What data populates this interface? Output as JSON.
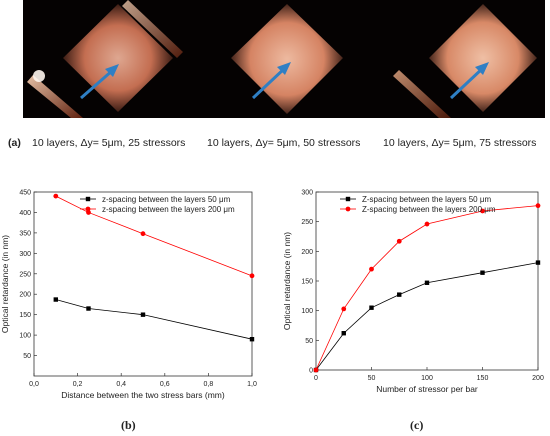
{
  "photos": {
    "panel_letter": "(a)",
    "captions": [
      "10 layers, Δy= 5μm, 25 stressors",
      "10 layers, Δy= 5μm, 50 stressors",
      "10 layers, Δy= 5μm, 75 stressors"
    ]
  },
  "chart_data": [
    {
      "type": "line",
      "panel_label": "(b)",
      "xlabel": "Distance between the two stress bars (mm)",
      "ylabel": "Optical retardance (in nm)",
      "xlim": [
        0.0,
        1.0
      ],
      "ylim": [
        0,
        450
      ],
      "xticks": [
        "0,0",
        "0,2",
        "0,4",
        "0,6",
        "0,8",
        "1,0"
      ],
      "yticks": [
        "50",
        "100",
        "150",
        "200",
        "250",
        "300",
        "350",
        "400",
        "450"
      ],
      "legend_position": "top-right",
      "x": [
        0.1,
        0.25,
        0.5,
        1.0
      ],
      "series": [
        {
          "name": "z-spacing between the layers 50 μm",
          "color": "#000000",
          "marker": "square",
          "values": [
            187,
            165,
            150,
            90
          ]
        },
        {
          "name": "z-spacing between the layers 200 μm",
          "color": "#ff0000",
          "marker": "circle",
          "values": [
            440,
            400,
            348,
            245
          ]
        }
      ]
    },
    {
      "type": "line",
      "panel_label": "(c)",
      "xlabel": "Number of stressor per bar",
      "ylabel": "Optical retardance (in nm)",
      "xlim": [
        0,
        200
      ],
      "ylim": [
        0,
        300
      ],
      "xticks": [
        "0",
        "50",
        "100",
        "150",
        "200"
      ],
      "yticks": [
        "0",
        "50",
        "100",
        "150",
        "200",
        "250",
        "300"
      ],
      "legend_position": "top-left",
      "x": [
        0,
        25,
        50,
        75,
        100,
        150,
        200
      ],
      "series": [
        {
          "name": "Z-spacing between the layers  50 μm",
          "color": "#000000",
          "marker": "square",
          "values": [
            0,
            62,
            105,
            127,
            147,
            164,
            181
          ]
        },
        {
          "name": "Z-spacing between the layers  200 μm",
          "color": "#ff0000",
          "marker": "circle",
          "values": [
            0,
            103,
            170,
            217,
            246,
            268,
            277
          ]
        }
      ]
    }
  ]
}
